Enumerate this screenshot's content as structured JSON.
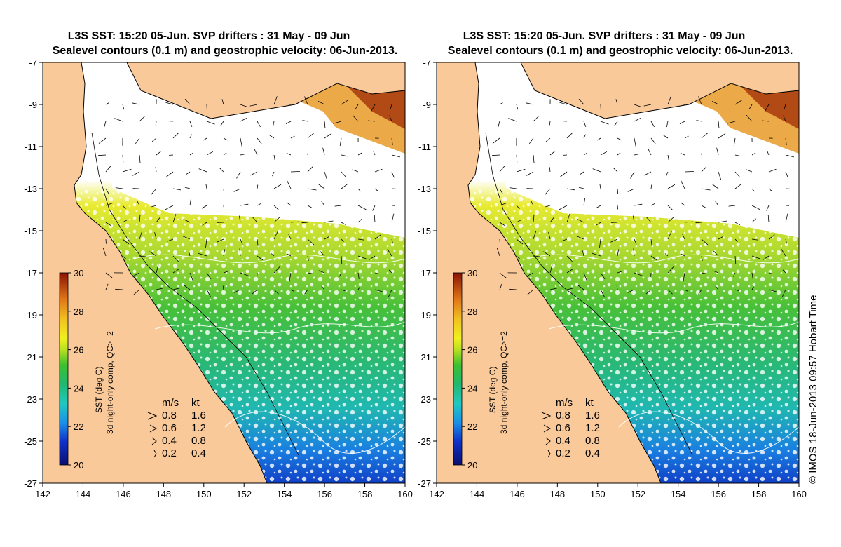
{
  "panels": [
    {
      "title_line1": "L3S SST: 15:20 05-Jun. SVP drifters : 31 May - 09 Jun",
      "title_line2": "Sealevel contours (0.1 m) and geostrophic velocity: 06-Jun-2013."
    },
    {
      "title_line1": "L3S SST: 15:20 05-Jun. SVP drifters : 31 May - 09 Jun",
      "title_line2": "Sealevel contours (0.1 m) and geostrophic velocity: 06-Jun-2013."
    }
  ],
  "axes": {
    "lon_ticks": [
      "142",
      "144",
      "146",
      "148",
      "150",
      "152",
      "154",
      "156",
      "158",
      "160"
    ],
    "lat_ticks": [
      "-7",
      "-9",
      "-11",
      "-13",
      "-15",
      "-17",
      "-19",
      "-21",
      "-23",
      "-25",
      "-27"
    ],
    "lon_range": [
      142,
      160
    ],
    "lat_range": [
      -27,
      -7
    ]
  },
  "colorbar": {
    "ticks": [
      "30",
      "28",
      "26",
      "24",
      "22",
      "20"
    ],
    "range": [
      20,
      30
    ],
    "label_line1": "SST (deg C)",
    "label_line2": "3d night-only comp, QC>=2"
  },
  "velocity_legend": {
    "header_ms": "m/s",
    "header_kt": "kt",
    "rows": [
      {
        "ms": "0.8",
        "kt": "1.6"
      },
      {
        "ms": "0.6",
        "kt": "1.2"
      },
      {
        "ms": "0.4",
        "kt": "0.8"
      },
      {
        "ms": "0.2",
        "kt": "0.4"
      }
    ]
  },
  "credit": "© IMOS 18-Jun-2013 09:57 Hobart Time",
  "colors": {
    "land": "#f9c99a",
    "coast": "#000000",
    "sst_cold": "#0a1a8a",
    "sst_mid": "#22b63c",
    "sst_warm": "#f2e12a",
    "sst_hot": "#8e1d06"
  }
}
